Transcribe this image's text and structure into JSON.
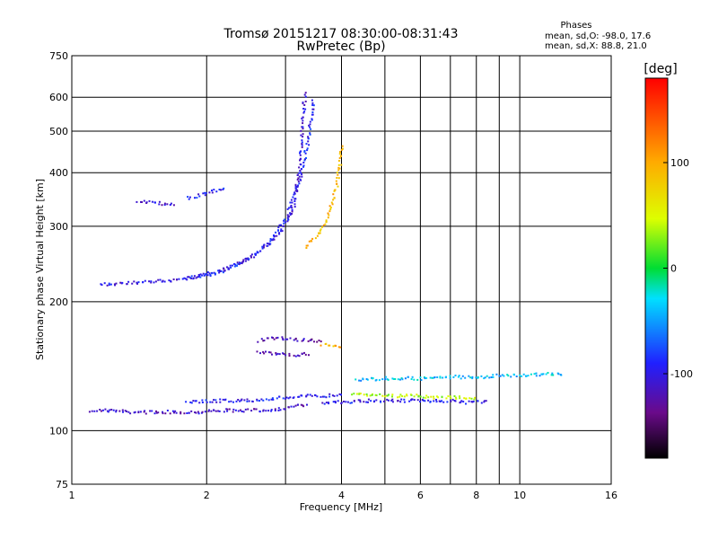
{
  "chart_data": {
    "type": "scatter",
    "title": "Tromsø 20151217 08:30:00-08:31:43",
    "subtitle": "RwPretec (Bp)",
    "xlabel": "Frequency [MHz]",
    "ylabel": "Stationary phase Virtual Height [km]",
    "x_scale": "log",
    "y_scale": "log",
    "xlim": [
      1,
      16
    ],
    "ylim": [
      75,
      750
    ],
    "x_ticks": [
      1,
      2,
      4,
      6,
      8,
      10,
      16
    ],
    "x_minor_ticks": [
      3,
      5,
      7,
      9
    ],
    "y_ticks": [
      75,
      100,
      200,
      300,
      400,
      500,
      600,
      750
    ],
    "grid": true,
    "legend": {
      "title": "Phases",
      "line_o": "mean, sd,O: -98.0, 17.6",
      "line_x": "mean, sd,X:  88.8, 21.0"
    },
    "colorbar": {
      "label": "[deg]",
      "ticks": [
        100,
        0,
        -100
      ],
      "range": [
        -180,
        180
      ],
      "colormap": "rainbow"
    },
    "traces": [
      {
        "x": [
          1.1,
          1.2,
          1.35,
          1.5,
          1.7,
          1.9,
          2.1,
          2.3,
          2.5,
          2.7,
          2.9,
          3.1,
          3.25,
          3.35
        ],
        "y": [
          112,
          112,
          111,
          111,
          111,
          111,
          112,
          112,
          112,
          112,
          113,
          114,
          115,
          116
        ],
        "phase": -115
      },
      {
        "x": [
          1.8,
          2.1,
          2.4,
          2.7,
          3.0,
          3.3,
          3.6,
          4.0
        ],
        "y": [
          117,
          118,
          118,
          119,
          120,
          121,
          121,
          122
        ],
        "phase": -95
      },
      {
        "x": [
          3.6,
          4.0,
          4.5,
          5.0,
          5.5,
          6.0,
          6.5,
          7.0,
          7.5,
          8.0,
          8.5
        ],
        "y": [
          117,
          117,
          118,
          118,
          118,
          118,
          118,
          118,
          117,
          117,
          117
        ],
        "phase": -100
      },
      {
        "x": [
          4.2,
          4.6,
          5.0,
          5.5,
          6.0,
          6.5,
          7.0,
          7.5,
          8.0
        ],
        "y": [
          123,
          122,
          121,
          121,
          121,
          120,
          120,
          120,
          119
        ],
        "phase": 40
      },
      {
        "x": [
          4.3,
          5.0,
          6.0,
          7.0,
          8.0,
          9.0,
          10.0,
          11.0,
          12.5
        ],
        "y": [
          132,
          133,
          133,
          134,
          134,
          135,
          135,
          136,
          136
        ],
        "phase": -40
      },
      {
        "x": [
          2.6,
          2.8,
          3.0,
          3.2,
          3.4,
          3.6
        ],
        "y": [
          163,
          165,
          165,
          164,
          163,
          162
        ],
        "phase": -125
      },
      {
        "x": [
          2.6,
          2.8,
          3.0,
          3.2,
          3.4
        ],
        "y": [
          153,
          152,
          151,
          151,
          152
        ],
        "phase": -120
      },
      {
        "x": [
          3.6,
          3.8,
          4.0
        ],
        "y": [
          160,
          158,
          156
        ],
        "phase": 95
      },
      {
        "x": [
          1.15,
          1.3,
          1.5,
          1.7,
          1.9,
          2.1,
          2.3,
          2.5,
          2.7,
          2.9,
          3.1,
          3.2,
          3.25,
          3.3
        ],
        "y": [
          220,
          222,
          224,
          226,
          230,
          236,
          245,
          256,
          270,
          290,
          330,
          400,
          500,
          620
        ],
        "phase": -105
      },
      {
        "x": [
          1.8,
          2.0,
          2.2,
          2.4,
          2.6,
          2.8,
          3.0,
          3.2,
          3.35,
          3.45
        ],
        "y": [
          228,
          232,
          238,
          248,
          262,
          282,
          315,
          380,
          470,
          600
        ],
        "phase": -95
      },
      {
        "x": [
          3.3,
          3.5,
          3.7,
          3.9,
          4.0
        ],
        "y": [
          270,
          285,
          310,
          380,
          470
        ],
        "phase": 92
      },
      {
        "x": [
          1.4,
          1.5,
          1.6,
          1.7
        ],
        "y": [
          345,
          342,
          340,
          340
        ],
        "phase": -110
      },
      {
        "x": [
          1.8,
          1.9,
          2.0,
          2.1,
          2.2
        ],
        "y": [
          350,
          355,
          360,
          365,
          370
        ],
        "phase": -95
      }
    ]
  }
}
